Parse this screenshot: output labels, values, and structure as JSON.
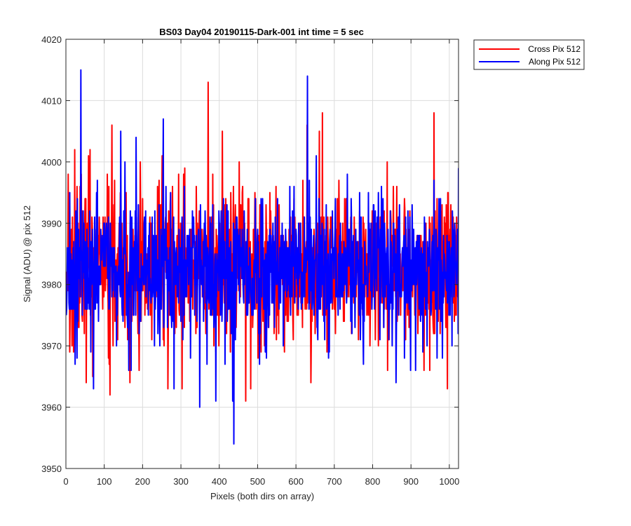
{
  "chart_data": {
    "type": "line",
    "title": "BS03 Day04 20190115-Dark-001 int time = 5 sec",
    "xlabel": "Pixels (both dirs on array)",
    "ylabel": "Signal (ADU) @ pix 512",
    "xlim": [
      0,
      1024
    ],
    "ylim": [
      3950,
      4020
    ],
    "xticks": [
      0,
      100,
      200,
      300,
      400,
      500,
      600,
      700,
      800,
      900,
      1000
    ],
    "yticks": [
      3950,
      3960,
      3970,
      3980,
      3990,
      4000,
      4010,
      4020
    ],
    "grid": true,
    "legend_position": "outside-top-right",
    "noise_model": {
      "points": 1024,
      "mean": 3983,
      "spread": 6
    },
    "series": [
      {
        "name": "Cross Pix 512",
        "color": "#ff0000",
        "seed": 17,
        "peaks": [
          [
            5,
            3998
          ],
          [
            19,
            3969
          ],
          [
            22,
            4002
          ],
          [
            28,
            3996
          ],
          [
            39,
            3998
          ],
          [
            52,
            3964
          ],
          [
            58,
            4001
          ],
          [
            62,
            4002
          ],
          [
            69,
            3965
          ],
          [
            107,
            3998
          ],
          [
            110,
            3968
          ],
          [
            114,
            3962
          ],
          [
            119,
            4006
          ],
          [
            126,
            3997
          ],
          [
            166,
            3964
          ],
          [
            190,
            3966
          ],
          [
            193,
            4000
          ],
          [
            212,
            3976
          ],
          [
            226,
            3985
          ],
          [
            232,
            3976
          ],
          [
            242,
            3997
          ],
          [
            250,
            4001
          ],
          [
            265,
            3963
          ],
          [
            277,
            3996
          ],
          [
            293,
            3998
          ],
          [
            302,
            3963
          ],
          [
            309,
            3999
          ],
          [
            335,
            3985
          ],
          [
            370,
            4013
          ],
          [
            382,
            3998
          ],
          [
            390,
            3969
          ],
          [
            407,
            4005
          ],
          [
            418,
            3972
          ],
          [
            451,
            4000
          ],
          [
            468,
            3961
          ],
          [
            481,
            3963
          ],
          [
            500,
            3968
          ],
          [
            536,
            3982
          ],
          [
            542,
            3972
          ],
          [
            605,
            3975
          ],
          [
            617,
            3997
          ],
          [
            628,
            4006
          ],
          [
            638,
            3964
          ],
          [
            660,
            4005
          ],
          [
            668,
            4008
          ],
          [
            676,
            3975
          ],
          [
            763,
            3981
          ],
          [
            773,
            3975
          ],
          [
            823,
            3988
          ],
          [
            866,
            3983
          ],
          [
            917,
            3972
          ],
          [
            933,
            3966
          ],
          [
            948,
            3966
          ],
          [
            959,
            4008
          ],
          [
            970,
            3974
          ],
          [
            994,
            3963
          ],
          [
            1012,
            3974
          ],
          [
            1024,
            3988
          ]
        ]
      },
      {
        "name": "Along Pix 512",
        "color": "#0000ff",
        "seed": 91,
        "peaks": [
          [
            0,
            3975
          ],
          [
            3,
            3986
          ],
          [
            38,
            4015
          ],
          [
            47,
            3981
          ],
          [
            53,
            3976
          ],
          [
            71,
            3963
          ],
          [
            111,
            3976
          ],
          [
            136,
            3983
          ],
          [
            142,
            4005
          ],
          [
            163,
            3966
          ],
          [
            169,
            3966
          ],
          [
            182,
            4004
          ],
          [
            202,
            3980
          ],
          [
            212,
            3983
          ],
          [
            230,
            3970
          ],
          [
            243,
            3976
          ],
          [
            253,
            4007
          ],
          [
            274,
            3975
          ],
          [
            281,
            3963
          ],
          [
            309,
            3981
          ],
          [
            324,
            3968
          ],
          [
            348,
            3960
          ],
          [
            374,
            3986
          ],
          [
            390,
            3961
          ],
          [
            414,
            3967
          ],
          [
            434,
            3961
          ],
          [
            437,
            3954
          ],
          [
            456,
            3986
          ],
          [
            471,
            3981
          ],
          [
            482,
            3978
          ],
          [
            516,
            3976
          ],
          [
            540,
            3977
          ],
          [
            566,
            3970
          ],
          [
            571,
            3982
          ],
          [
            624,
            3985
          ],
          [
            629,
            4014
          ],
          [
            646,
            3975
          ],
          [
            656,
            3971
          ],
          [
            677,
            3982
          ],
          [
            684,
            3968
          ],
          [
            696,
            3984
          ],
          [
            722,
            3982
          ],
          [
            743,
            3994
          ],
          [
            775,
            3967
          ],
          [
            790,
            3990
          ],
          [
            819,
            3989
          ],
          [
            833,
            3985
          ],
          [
            852,
            3976
          ],
          [
            860,
            3964
          ],
          [
            877,
            3986
          ],
          [
            882,
            3968
          ],
          [
            902,
            3993
          ],
          [
            911,
            3966
          ],
          [
            928,
            3975
          ],
          [
            941,
            3970
          ],
          [
            960,
            3981
          ],
          [
            976,
            3994
          ],
          [
            1001,
            3975
          ],
          [
            1006,
            3970
          ],
          [
            1024,
            3999
          ]
        ]
      }
    ]
  }
}
